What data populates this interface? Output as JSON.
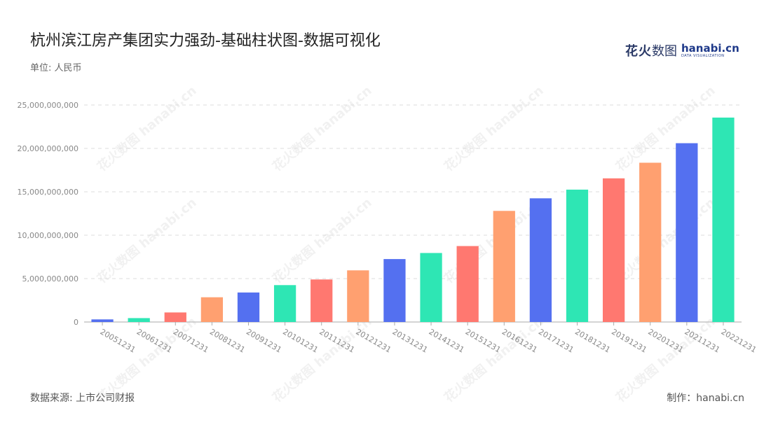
{
  "title": "杭州滨江房产集团实力强劲-基础柱状图-数据可视化",
  "unit_label": "单位: 人民币",
  "logo": {
    "cn_a": "花火",
    "cn_b": "数图",
    "en": "hanabi.cn",
    "en_sub": "DATA VISUALIZATION"
  },
  "source": "数据来源: 上市公司财报",
  "maker": "制作：hanabi.cn",
  "watermark": "花火数图 hanabi.cn",
  "colors": [
    "#5470f0",
    "#2ee6b4",
    "#ff7870",
    "#ffa070"
  ],
  "chart_data": {
    "type": "bar",
    "title": "杭州滨江房产集团实力强劲-基础柱状图-数据可视化",
    "categories": [
      "20051231",
      "20061231",
      "20071231",
      "20081231",
      "20091231",
      "20101231",
      "20111231",
      "20121231",
      "20131231",
      "20141231",
      "20151231",
      "20161231",
      "20171231",
      "20181231",
      "20191231",
      "20201231",
      "20211231",
      "20221231"
    ],
    "values": [
      300000000,
      450000000,
      1100000000,
      2850000000,
      3400000000,
      4250000000,
      4900000000,
      5950000000,
      7250000000,
      7950000000,
      8750000000,
      12800000000,
      14250000000,
      15250000000,
      16550000000,
      18350000000,
      20600000000,
      23550000000
    ],
    "ylim": [
      0,
      25000000000
    ],
    "yticks": [
      0,
      5000000000,
      10000000000,
      15000000000,
      20000000000,
      25000000000
    ],
    "ytick_labels": [
      "0",
      "5,000,000,000",
      "10,000,000,000",
      "15,000,000,000",
      "20,000,000,000",
      "25,000,000,000"
    ],
    "grid": true,
    "xlabel": "",
    "ylabel": ""
  }
}
